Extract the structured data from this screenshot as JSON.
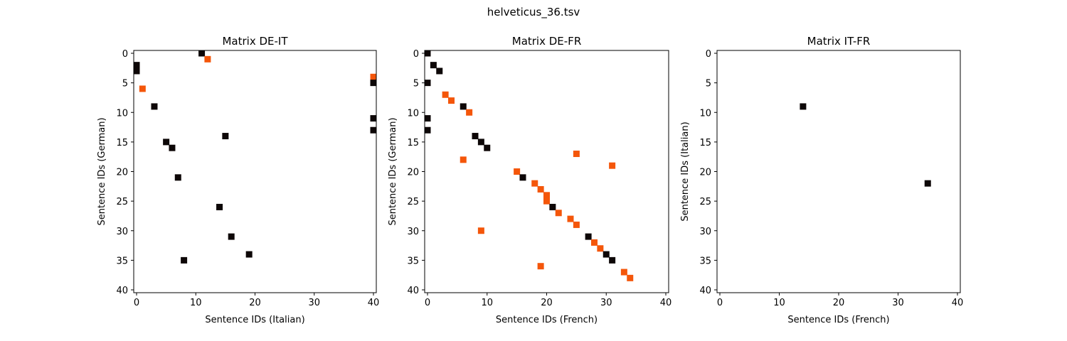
{
  "figure": {
    "title": "helveticus_36.tsv"
  },
  "colors": {
    "black": "#0d0707",
    "orange": "#f4560a"
  },
  "chart_data": [
    {
      "type": "scatter",
      "title": "Matrix DE-IT",
      "xlabel": "Sentence IDs (Italian)",
      "ylabel": "Sentence IDs (German)",
      "xlim": [
        0,
        40
      ],
      "ylim": [
        40,
        0
      ],
      "xticks": [
        0,
        10,
        20,
        30,
        40
      ],
      "yticks": [
        0,
        5,
        10,
        15,
        20,
        25,
        30,
        35,
        40
      ],
      "points": [
        {
          "x": 11,
          "y": 0,
          "c": "black"
        },
        {
          "x": 12,
          "y": 1,
          "c": "orange"
        },
        {
          "x": 0,
          "y": 2,
          "c": "black"
        },
        {
          "x": 0,
          "y": 3,
          "c": "black"
        },
        {
          "x": 40,
          "y": 4,
          "c": "orange"
        },
        {
          "x": 40,
          "y": 5,
          "c": "black"
        },
        {
          "x": 1,
          "y": 6,
          "c": "orange"
        },
        {
          "x": 3,
          "y": 9,
          "c": "black"
        },
        {
          "x": 40,
          "y": 11,
          "c": "black"
        },
        {
          "x": 40,
          "y": 13,
          "c": "black"
        },
        {
          "x": 15,
          "y": 14,
          "c": "black"
        },
        {
          "x": 5,
          "y": 15,
          "c": "black"
        },
        {
          "x": 6,
          "y": 16,
          "c": "black"
        },
        {
          "x": 7,
          "y": 21,
          "c": "black"
        },
        {
          "x": 14,
          "y": 26,
          "c": "black"
        },
        {
          "x": 16,
          "y": 31,
          "c": "black"
        },
        {
          "x": 19,
          "y": 34,
          "c": "black"
        },
        {
          "x": 8,
          "y": 35,
          "c": "black"
        }
      ]
    },
    {
      "type": "scatter",
      "title": "Matrix DE-FR",
      "xlabel": "Sentence IDs (French)",
      "ylabel": "Sentence IDs (German)",
      "xlim": [
        0,
        40
      ],
      "ylim": [
        40,
        0
      ],
      "xticks": [
        0,
        10,
        20,
        30,
        40
      ],
      "yticks": [
        0,
        5,
        10,
        15,
        20,
        25,
        30,
        35,
        40
      ],
      "points": [
        {
          "x": 0,
          "y": 0,
          "c": "black"
        },
        {
          "x": 1,
          "y": 2,
          "c": "black"
        },
        {
          "x": 2,
          "y": 3,
          "c": "black"
        },
        {
          "x": 0,
          "y": 5,
          "c": "black"
        },
        {
          "x": 3,
          "y": 7,
          "c": "orange"
        },
        {
          "x": 4,
          "y": 8,
          "c": "orange"
        },
        {
          "x": 6,
          "y": 9,
          "c": "black"
        },
        {
          "x": 7,
          "y": 10,
          "c": "orange"
        },
        {
          "x": 0,
          "y": 11,
          "c": "black"
        },
        {
          "x": 0,
          "y": 13,
          "c": "black"
        },
        {
          "x": 8,
          "y": 14,
          "c": "black"
        },
        {
          "x": 9,
          "y": 15,
          "c": "black"
        },
        {
          "x": 10,
          "y": 16,
          "c": "black"
        },
        {
          "x": 25,
          "y": 17,
          "c": "orange"
        },
        {
          "x": 6,
          "y": 18,
          "c": "orange"
        },
        {
          "x": 31,
          "y": 19,
          "c": "orange"
        },
        {
          "x": 15,
          "y": 20,
          "c": "orange"
        },
        {
          "x": 16,
          "y": 21,
          "c": "black"
        },
        {
          "x": 18,
          "y": 22,
          "c": "orange"
        },
        {
          "x": 19,
          "y": 23,
          "c": "orange"
        },
        {
          "x": 20,
          "y": 24,
          "c": "orange"
        },
        {
          "x": 20,
          "y": 25,
          "c": "orange"
        },
        {
          "x": 21,
          "y": 26,
          "c": "black"
        },
        {
          "x": 22,
          "y": 27,
          "c": "orange"
        },
        {
          "x": 24,
          "y": 28,
          "c": "orange"
        },
        {
          "x": 25,
          "y": 29,
          "c": "orange"
        },
        {
          "x": 9,
          "y": 30,
          "c": "orange"
        },
        {
          "x": 27,
          "y": 31,
          "c": "black"
        },
        {
          "x": 28,
          "y": 32,
          "c": "orange"
        },
        {
          "x": 29,
          "y": 33,
          "c": "orange"
        },
        {
          "x": 30,
          "y": 34,
          "c": "black"
        },
        {
          "x": 31,
          "y": 35,
          "c": "black"
        },
        {
          "x": 19,
          "y": 36,
          "c": "orange"
        },
        {
          "x": 33,
          "y": 37,
          "c": "orange"
        },
        {
          "x": 34,
          "y": 38,
          "c": "orange"
        }
      ]
    },
    {
      "type": "scatter",
      "title": "Matrix IT-FR",
      "xlabel": "Sentence IDs (French)",
      "ylabel": "Sentence IDs (Italian)",
      "xlim": [
        0,
        40
      ],
      "ylim": [
        40,
        0
      ],
      "xticks": [
        0,
        10,
        20,
        30,
        40
      ],
      "yticks": [
        0,
        5,
        10,
        15,
        20,
        25,
        30,
        35,
        40
      ],
      "points": [
        {
          "x": 14,
          "y": 9,
          "c": "black"
        },
        {
          "x": 35,
          "y": 22,
          "c": "black"
        }
      ]
    }
  ]
}
